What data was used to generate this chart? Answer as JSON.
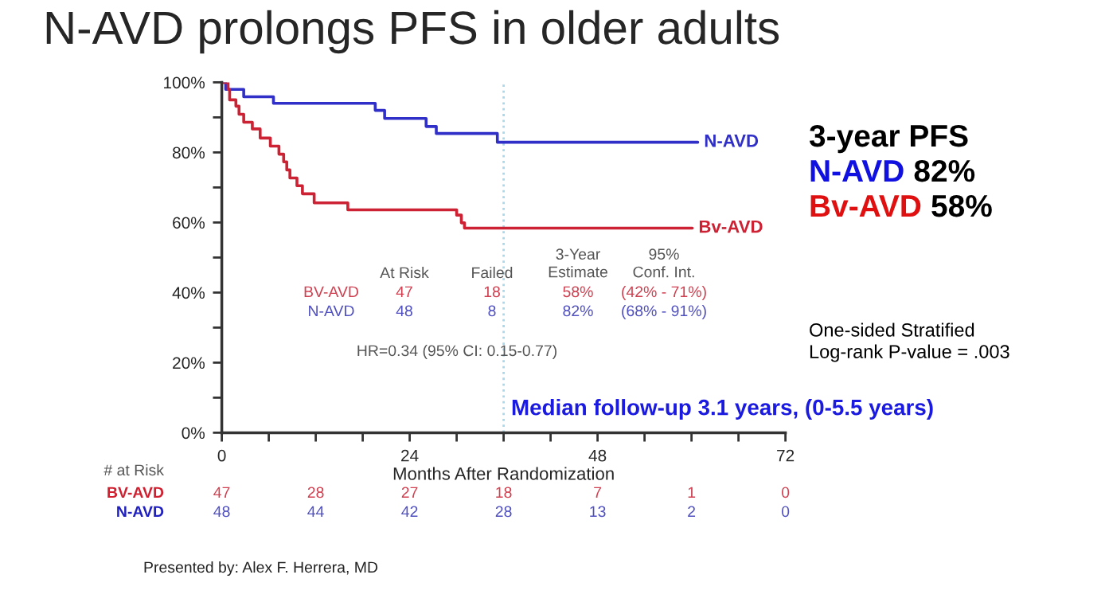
{
  "chart_data": {
    "type": "step",
    "title": "N-AVD prolongs PFS in older adults",
    "xlabel": "Months After Randomization",
    "xlim": [
      0,
      72
    ],
    "ylim": [
      0,
      100
    ],
    "xticks": [
      0,
      {
        "value": 6,
        "label": null
      },
      {
        "value": 12,
        "label": null
      },
      {
        "value": 18,
        "label": null
      },
      24,
      {
        "value": 30,
        "label": null
      },
      {
        "value": 36,
        "label": null
      },
      {
        "value": 42,
        "label": null
      },
      48,
      {
        "value": 54,
        "label": null
      },
      {
        "value": 60,
        "label": null
      },
      {
        "value": 66,
        "label": null
      },
      72
    ],
    "yticks": [
      {
        "value": 0,
        "label": "0%"
      },
      {
        "value": 10,
        "label": null
      },
      {
        "value": 20,
        "label": "20%"
      },
      {
        "value": 30,
        "label": null
      },
      {
        "value": 40,
        "label": "40%"
      },
      {
        "value": 50,
        "label": null
      },
      {
        "value": 60,
        "label": "60%"
      },
      {
        "value": 70,
        "label": null
      },
      {
        "value": 80,
        "label": "80%"
      },
      {
        "value": 90,
        "label": null
      },
      {
        "value": 100,
        "label": "100%"
      }
    ],
    "series": [
      {
        "name": "N-AVD",
        "color": "#3030c8",
        "x": [
          0,
          0.5,
          2.8,
          6.6,
          19.6,
          20.8,
          26.1,
          27.4,
          35.2,
          60.8
        ],
        "values": [
          100,
          98,
          95.9,
          94,
          92,
          89.7,
          87.4,
          85.4,
          82.9,
          82.9
        ]
      },
      {
        "name": "Bv-AVD",
        "color": "#cc2233",
        "x": [
          0,
          0.8,
          1.0,
          1.8,
          2.2,
          2.8,
          3.9,
          4.9,
          6.2,
          7.3,
          7.9,
          8.3,
          8.7,
          9.6,
          10.3,
          11.8,
          16.1,
          30.0,
          30.6,
          31.0,
          60.1
        ],
        "values": [
          100,
          98,
          95,
          93.2,
          90.9,
          88.6,
          86.7,
          84.1,
          81.8,
          79.5,
          77.3,
          75,
          72.7,
          70.5,
          68.2,
          65.6,
          63.6,
          62.1,
          59.9,
          58.4,
          58.4
        ]
      }
    ],
    "ref_lines": [
      {
        "axis": "x",
        "value": 36,
        "color": "#a8d8ea",
        "line_style": "dotted"
      }
    ],
    "legend": false,
    "grid": false,
    "annotations": [
      "3-year PFS",
      "N-AVD",
      "82%",
      "Bv-AVD",
      "58%",
      "One-sided Stratified\nLog-rank P-value = .003",
      "Median follow-up 3.1 years, (0-5.5 years)",
      "HR=0.34 (95% CI: 0.15-0.77)",
      "At Risk",
      "Failed",
      "3-Year\nEstimate",
      "95%\nConf. Int.",
      "BV-AVD",
      "47",
      "18",
      "58%",
      "(42% - 71%)",
      "N-AVD",
      "48",
      "8",
      "82%",
      "(68% - 91%)",
      "# at Risk",
      "BV-AVD",
      "47",
      "28",
      "27",
      "18",
      "7",
      "1",
      "0",
      "N-AVD",
      "48",
      "44",
      "42",
      "28",
      "13",
      "2",
      "0",
      "Presented by: Alex F. Herrera, MD"
    ]
  }
}
